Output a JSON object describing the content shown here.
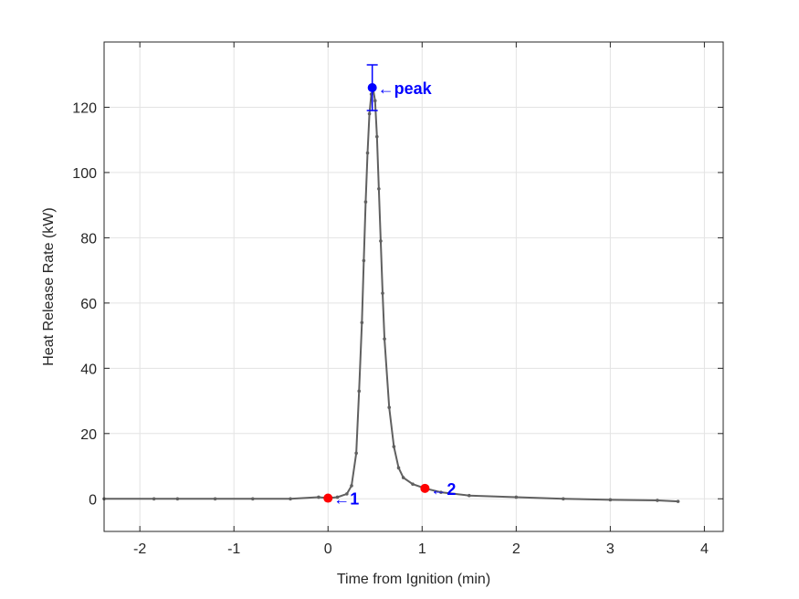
{
  "chart_data": {
    "type": "line",
    "title": "",
    "xlabel": "Time from Ignition (min)",
    "ylabel": "Heat Release Rate (kW)",
    "xlim": [
      -2.38,
      4.2
    ],
    "ylim": [
      -10,
      140
    ],
    "xticks": [
      -2,
      -1,
      0,
      1,
      2,
      3,
      4
    ],
    "yticks": [
      0,
      20,
      40,
      60,
      80,
      100,
      120
    ],
    "xtick_labels": [
      "-2",
      "-1",
      "0",
      "1",
      "2",
      "3",
      "4"
    ],
    "ytick_labels": [
      "0",
      "20",
      "40",
      "60",
      "80",
      "100",
      "120"
    ],
    "grid": true,
    "series": [
      {
        "color": "#606060",
        "marker": "dot",
        "x": [
          -2.38,
          -1.85,
          -1.6,
          -1.2,
          -0.8,
          -0.4,
          -0.1,
          0.0,
          0.1,
          0.2,
          0.25,
          0.3,
          0.33,
          0.36,
          0.38,
          0.4,
          0.42,
          0.44,
          0.46,
          0.48,
          0.5,
          0.52,
          0.54,
          0.56,
          0.58,
          0.6,
          0.65,
          0.7,
          0.75,
          0.8,
          0.9,
          1.03,
          1.2,
          1.5,
          2.0,
          2.5,
          3.0,
          3.5,
          3.72
        ],
        "y": [
          0,
          0,
          0,
          0,
          0,
          0,
          0.5,
          0.2,
          0.5,
          1.5,
          4,
          14,
          33,
          54,
          73,
          91,
          106,
          118,
          124,
          125.5,
          122,
          111,
          95,
          79,
          63,
          49,
          28,
          16,
          9.5,
          6.5,
          4.5,
          3.2,
          2,
          1,
          0.5,
          0,
          -0.3,
          -0.5,
          -0.8
        ]
      }
    ],
    "markers": [
      {
        "label": "1",
        "x": 0.0,
        "y": 0.2,
        "color": "#ff0000"
      },
      {
        "label": "2",
        "x": 1.03,
        "y": 3.2,
        "color": "#ff0000"
      },
      {
        "label": "peak",
        "x": 0.47,
        "y": 126,
        "color": "#0000ff",
        "error_low": 119,
        "error_high": 133
      }
    ],
    "annotations": [
      {
        "text": "←peak"
      },
      {
        "text": "←1"
      },
      {
        "text": "←2"
      }
    ]
  }
}
